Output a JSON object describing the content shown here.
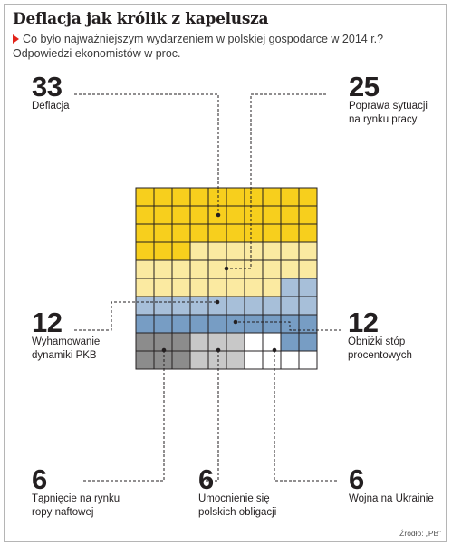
{
  "header": {
    "title": "Deflacja jak królik z kapelusza",
    "subtitle_line1": "Co było najważniejszym wydarzeniem w polskiej gospodarce w 2014 r.?",
    "subtitle_line2": "Odpowiedzi ekonomistów w proc."
  },
  "source": "Źródło: „PB”",
  "colors": {
    "deflacja": "#f7cf1d",
    "rynek_pracy": "#fbeaa1",
    "pkb": "#a7bfd9",
    "stopy": "#779dc4",
    "ropa": "#8c8c8c",
    "obligacje": "#c8c8c8",
    "ukraina": "#ffffff",
    "grid_line": "#231f20"
  },
  "chart_data": {
    "type": "waffle",
    "title": "Deflacja jak królik z kapelusza",
    "grid": {
      "rows": 10,
      "cols": 10
    },
    "unit": "proc.",
    "series": [
      {
        "name": "Deflacja",
        "value": 33
      },
      {
        "name": "Poprawa sytuacji na rynku pracy",
        "value": 25
      },
      {
        "name": "Wyhamowanie dynamiki PKB",
        "value": 12
      },
      {
        "name": "Obniżki stóp procentowych",
        "value": 12
      },
      {
        "name": "Tąpnięcie na rynku ropy naftowej",
        "value": 6
      },
      {
        "name": "Umocnienie się polskich obligacji",
        "value": 6
      },
      {
        "name": "Wojna na Ukrainie",
        "value": 6
      }
    ]
  },
  "labels": {
    "deflacja": {
      "value": "33",
      "line1": "Deflacja",
      "line2": ""
    },
    "rynek_pracy": {
      "value": "25",
      "line1": "Poprawa sytuacji",
      "line2": "na rynku pracy"
    },
    "pkb": {
      "value": "12",
      "line1": "Wyhamowanie",
      "line2": "dynamiki PKB"
    },
    "stopy": {
      "value": "12",
      "line1": "Obniżki stóp",
      "line2": "procentowych"
    },
    "ropa": {
      "value": "6",
      "line1": "Tąpnięcie na rynku",
      "line2": "ropy naftowej"
    },
    "obligacje": {
      "value": "6",
      "line1": "Umocnienie się",
      "line2": "polskich obligacji"
    },
    "ukraina": {
      "value": "6",
      "line1": "Wojna na Ukrainie",
      "line2": ""
    }
  }
}
